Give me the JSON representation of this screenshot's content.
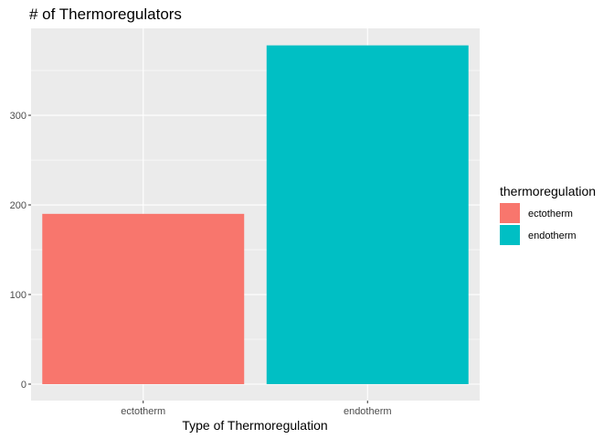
{
  "chart_data": {
    "type": "bar",
    "title": "# of Thermoregulators",
    "xlabel": "Type of Thermoregulation",
    "ylabel": "",
    "categories": [
      "ectotherm",
      "endotherm"
    ],
    "values": [
      190,
      378
    ],
    "colors": [
      "#F8766D",
      "#00BFC4"
    ],
    "ylim": [
      0,
      397
    ],
    "yticks": [
      0,
      100,
      200,
      300
    ],
    "grid": true,
    "legend": {
      "title": "thermoregulation",
      "position": "right",
      "entries": [
        "ectotherm",
        "endotherm"
      ]
    },
    "panel_background": "#EBEBEB",
    "gridline_color": "#FFFFFF"
  }
}
